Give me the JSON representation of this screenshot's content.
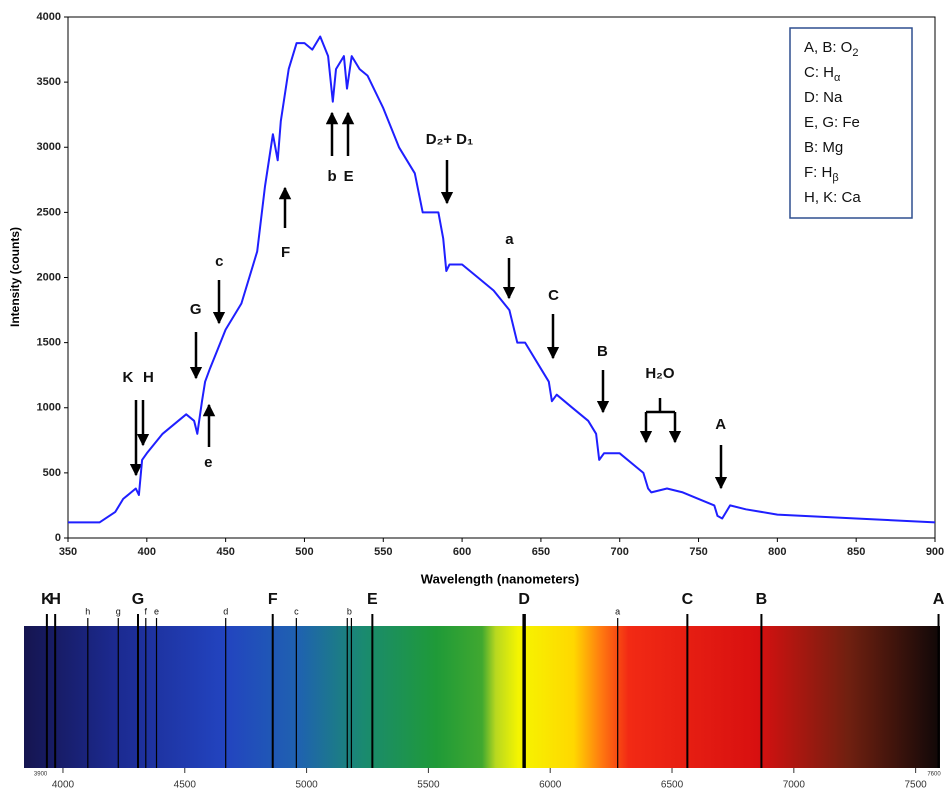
{
  "chart_data": [
    {
      "type": "line",
      "x_label": "Wavelength (nanometers)",
      "y_label": "Intensity (counts)",
      "xlim": [
        350,
        900
      ],
      "xticks": [
        350,
        400,
        450,
        500,
        550,
        600,
        650,
        700,
        750,
        800,
        850,
        900
      ],
      "ylim": [
        0,
        4000
      ],
      "yticks": [
        0,
        500,
        1000,
        1500,
        2000,
        2500,
        3000,
        3500,
        4000
      ],
      "grid": false,
      "legend_position": "top-right",
      "legend": [
        {
          "text": "A, B: O",
          "sub": "2"
        },
        {
          "text": "C: H",
          "sub": "α"
        },
        {
          "text": "D: Na"
        },
        {
          "text": "E, G: Fe"
        },
        {
          "text": "B: Mg"
        },
        {
          "text": "F: H",
          "sub": "β"
        },
        {
          "text": "H, K: Ca"
        }
      ],
      "series": [
        {
          "color": "#1f1fff",
          "x": [
            350,
            370,
            380,
            385,
            390,
            393,
            395,
            397,
            400,
            410,
            420,
            425,
            430,
            432,
            435,
            437,
            440,
            445,
            450,
            460,
            470,
            475,
            480,
            483,
            485,
            490,
            495,
            500,
            505,
            510,
            515,
            518,
            520,
            525,
            527,
            530,
            535,
            540,
            550,
            560,
            570,
            575,
            580,
            585,
            588,
            590,
            592,
            600,
            610,
            620,
            630,
            635,
            640,
            650,
            655,
            657,
            660,
            670,
            680,
            685,
            687,
            690,
            700,
            710,
            715,
            718,
            720,
            730,
            740,
            750,
            760,
            762,
            765,
            770,
            780,
            800,
            850,
            900
          ],
          "values": [
            120,
            120,
            200,
            300,
            350,
            380,
            330,
            600,
            650,
            800,
            900,
            950,
            900,
            800,
            1050,
            1200,
            1300,
            1450,
            1600,
            1800,
            2200,
            2700,
            3100,
            2900,
            3200,
            3600,
            3800,
            3800,
            3750,
            3850,
            3700,
            3350,
            3600,
            3700,
            3450,
            3700,
            3600,
            3550,
            3300,
            3000,
            2800,
            2500,
            2500,
            2500,
            2300,
            2050,
            2100,
            2100,
            2000,
            1900,
            1750,
            1500,
            1500,
            1300,
            1200,
            1050,
            1100,
            1000,
            900,
            800,
            600,
            650,
            650,
            550,
            500,
            380,
            350,
            380,
            350,
            300,
            250,
            170,
            150,
            250,
            220,
            180,
            150,
            120
          ]
        }
      ],
      "annotations": [
        {
          "text": "K",
          "x": 388,
          "y": 1228
        },
        {
          "text": "H",
          "x": 401,
          "y": 1228
        },
        {
          "text": "G",
          "x": 431,
          "y": 1750
        },
        {
          "text": "c",
          "x": 446,
          "y": 2119
        },
        {
          "text": "e",
          "x": 439,
          "y": 576
        },
        {
          "text": "F",
          "x": 488,
          "y": 2188
        },
        {
          "text": "b",
          "x": 517.5,
          "y": 2772
        },
        {
          "text": "E",
          "x": 528,
          "y": 2772
        },
        {
          "text": "D₂+ D₁",
          "x": 592,
          "y": 3056
        },
        {
          "text": "a",
          "x": 630,
          "y": 2288
        },
        {
          "text": "C",
          "x": 658,
          "y": 1858
        },
        {
          "text": "B",
          "x": 689,
          "y": 1428
        },
        {
          "text": "H₂O",
          "x": 725.5,
          "y": 1259
        },
        {
          "text": "A",
          "x": 764,
          "y": 868
        }
      ]
    },
    {
      "type": "spectrum",
      "xlim": [
        3900,
        7600
      ],
      "xticks": [
        4000,
        4500,
        5000,
        5500,
        6000,
        6500,
        7000,
        7500
      ],
      "lines": [
        {
          "label": "K",
          "wavelengths": [
            3934
          ]
        },
        {
          "label": "H",
          "wavelengths": [
            3968
          ]
        },
        {
          "label": "h",
          "wavelengths": [
            4102
          ]
        },
        {
          "label": "g",
          "wavelengths": [
            4227
          ]
        },
        {
          "label": "G",
          "wavelengths": [
            4308
          ]
        },
        {
          "label": "f",
          "wavelengths": [
            4340
          ]
        },
        {
          "label": "e",
          "wavelengths": [
            4384
          ]
        },
        {
          "label": "d",
          "wavelengths": [
            4668
          ]
        },
        {
          "label": "F",
          "wavelengths": [
            4861
          ]
        },
        {
          "label": "c",
          "wavelengths": [
            4958
          ]
        },
        {
          "label": "b",
          "wavelengths": [
            5167,
            5184
          ]
        },
        {
          "label": "E",
          "wavelengths": [
            5270
          ]
        },
        {
          "label": "D",
          "wavelengths": [
            5890,
            5896
          ]
        },
        {
          "label": "a",
          "wavelengths": [
            6277
          ]
        },
        {
          "label": "C",
          "wavelengths": [
            6563
          ]
        },
        {
          "label": "B",
          "wavelengths": [
            6867
          ]
        },
        {
          "label": "A",
          "wavelengths": [
            7594
          ]
        }
      ]
    }
  ]
}
